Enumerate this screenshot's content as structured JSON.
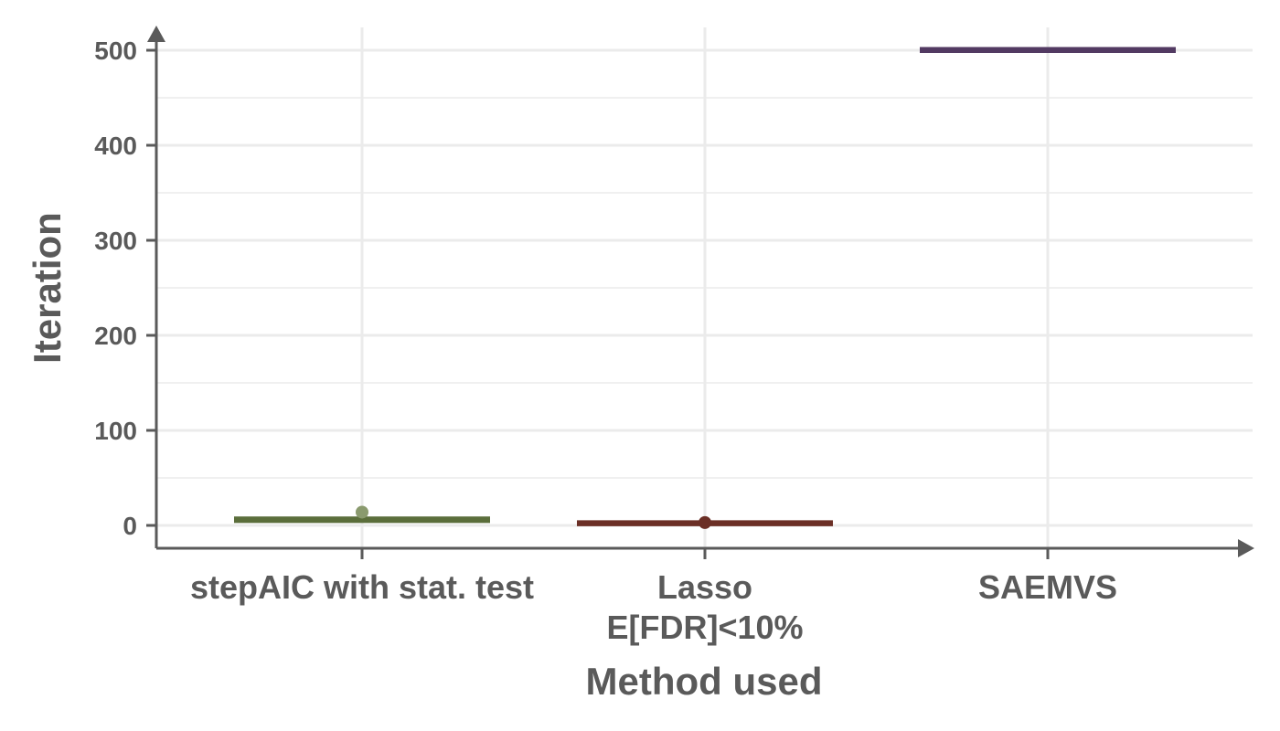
{
  "chart_data": {
    "type": "boxplot",
    "xlabel": "Method used",
    "ylabel": "Iteration",
    "ylim": [
      -23,
      502
    ],
    "yticks": [
      0,
      100,
      200,
      300,
      400,
      500
    ],
    "y_minor_ticks": [
      50,
      150,
      250,
      350,
      450
    ],
    "grid": true,
    "categories": [
      [
        "stepAIC with stat. test"
      ],
      [
        "Lasso",
        "E[FDR]<10%"
      ],
      [
        "SAEMVS"
      ]
    ],
    "series": [
      {
        "category": 0,
        "q1": 5,
        "median": 6,
        "q3": 7,
        "whisker_low": 5,
        "whisker_high": 7,
        "outliers": [
          14
        ],
        "color": "#5b6e3b",
        "outlier_color": "#8a9a6e"
      },
      {
        "category": 1,
        "q1": 2,
        "median": 2,
        "q3": 3,
        "whisker_low": 2,
        "whisker_high": 3,
        "outliers": [
          3
        ],
        "color": "#6b2f26",
        "outlier_color": "#6b2f26"
      },
      {
        "category": 2,
        "q1": 500,
        "median": 500,
        "q3": 501,
        "whisker_low": 500,
        "whisker_high": 501,
        "outliers": [],
        "color": "#523a62",
        "outlier_color": "#523a62"
      }
    ],
    "colors": {
      "axis": "#5a5a5a",
      "grid": "#ebebeb",
      "text": "#5a5a5a"
    }
  }
}
